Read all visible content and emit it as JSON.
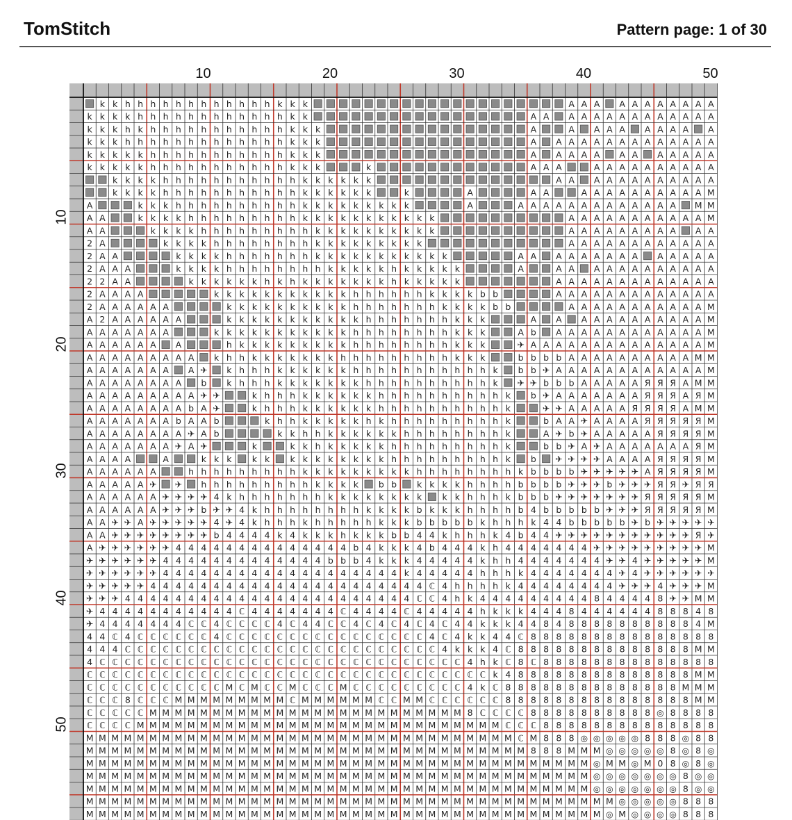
{
  "header": {
    "brand": "TomStitch",
    "page_label": "Pattern page: 1 of 30"
  },
  "pattern": {
    "columns_shown": 50,
    "rows_shown": 57,
    "column_numbers": [
      "10",
      "20",
      "30",
      "40",
      "50"
    ],
    "row_numbers": [
      "10",
      "20",
      "30",
      "40",
      "50"
    ],
    "major_gridline_every": 5,
    "colors": {
      "grid": "#333333",
      "major_grid": "#c0392b",
      "ruler_fill": "#bdbdbd",
      "symbol_text": "#222222",
      "dark_block": "#8a8a8a"
    },
    "symbol_legend": {
      "h": "h",
      "k": "k",
      "A": "A",
      "2": "2",
      "b": "b",
      "4": "4",
      "8": "8",
      "M": "M",
      "C": "ℂ",
      "R": "Я",
      "+": "✈",
      "O": "◎",
      "#": "block"
    },
    "rows": [
      "#kkhhhhhhhhhhhhkkk####################AAA#AAAAAAAAAA",
      "kkkkhhhhhhhhhhhhkk#################AA#AAAAAAAAAAAAA",
      "kkkhkhhhhhhhhhhhkkk################A##A#AAA#AAAA#A",
      "kkkhhhhhhhhhhhhhkkk################A#AAAAAAAAAAAAA",
      "kkkkkhhhhhhhhhhhkkk################A#AAAA#AA#AAAAA",
      "kkkkkhhhhhhhhhhhkkk###k############AAA##AAAAAAAAAA",
      "##kkkkhhhhhhhhhhhkkkkkk##############AA#AAAAAAAAAA",
      "##kkkkhhhhhhhhhhhkkkkkk##k####A####AA##AAAAAAAAAA",
      "A###kkkhhhhhhhhhhkkkkkkkkk####A###AAAAAAAAAAAAA#",
      "AA##kkkkhhhhhhhhhkkkkkkkkkkk##########AAAAAAAAAAA",
      "AA###kkkkhhhhhhhhhkkkkkkkkkk##########AAAAAAAAA#AA",
      "2A####kkkkhhhhhhhhkkkkkkkkk###########AAAAAAAAAAAA",
      "2AA####kkkkhhhhhhhkkkkkkkkkkk#####AA#AAAAAAA#AAAAA",
      "2AAA###kkkkhhhhhhhhkkkkkhkkkkk####A##AA#AAAAAAAAAA",
      "22AA####kkkkkkhkhkkkkkkkhkkkkk#######AAAAAAAAAAAAA",
      "2AAAA#####kkkkkkkkkkkhhhhhhkkkkbb####AAAAAAAAAAAAA",
      "2AAAAAA####kkkkkkkkkkhhhhhhhkkkkbb####AAAAAAAAAAA",
      "A2AAAAAA###kkkkkkkkkkkhhhhhhhkkk###A#A#AAAAAAAAAA",
      "AAAAAAA###kkkkkkkkkkkhhhhhhhhkkk##Ab#AAAAAAAAAAAA",
      "AAAAAA#A###hkkkkkkkkkhhhhhhhhkkk##+AAAAAAAAAAAAAA",
      "AAAAAAAAA#khhkkkkkkkhhhhhhhhhkkk##bbbbAAAAAAAAAA",
      "AAAAAAA#A+#khhhkkkkkkhhhhhhhhhhhk#bb+AAAAAAAAAAAA",
      "AAAAAAAA#b#khhhkkkkkkkhhhhhhhhhhk#++bbbAAAAARRRA",
      "AAAAAAAAA++##khhhkkkkkkhhhhhhhhhhk#b+AAAAAAARRRAR",
      "AAAAAAAAbA+##khhhkkkkkkhhhhhhhhhhk##++AAAAARRRRA",
      "AAAAAAAbAAb###khhkkkkkhkhhhhhhhhhk##bAA+AAAARRRRR",
      "AAAAAAAA+Ab####kkhhkkkkkkhhhhhhhhk##A+b+AAAAARRRR",
      "AAAAAAA+A+###k##kkhkkkkkhhhhhhhhhk##bb+A+AAAAAAAR",
      "AAAA##A##kkk#kk#kkkkkkkkhhhhhhhhhk#b#++++AAAARRRR",
      "AAAAAA##hhhhhhhhhkkkkkkkkkhhhhhhhhkbbbb+++++ARRRR",
      "AAAAA+#+#hhhhhhhhhkkkk#bb#kkkkhhhhbbbb+++b+++RR+RR",
      "AAAAAA++++4khhhhhhhkkkkkkkk#kkhhhkbbb+++++++RRRRR",
      "AAAAAA+++b++4khhhhhhhhkkkkbkkkhhhhb4bbbbb+++RRRRR",
      "AA++A+++++4+4khhhkhhhhhkkkbbbbbkhhhk44bbbbb+b+++++RR",
      "AA++++++++b4444k4kkkhkkkbb44khhhk4b44+++++++++++R+",
      "A++++++44444444444444b4kkk4b444kh4444444+++++++++",
      "++++++4444444444444bbb4kkk44444khh4444444++4+++++",
      "++++++4444444444444444444k44444hhhk4444444+4++++++",
      "+++++4444444444444444444444C4hhhhk44444444+++4+++",
      "+++44444444444444444444444CC4hk444444444844448++",
      "+44444444444C4444444C4444C44444hkkk4448444444888488",
      "+4444444CC4CCCC4C44CC4C4C4C4C44kkk448488888888884",
      "44C4CCCCCC4CCCCCCCCCCCCCCCC4C4kk44C888888888888888",
      "444CCCCCCCCCCCCCCCCCCCCCCCCC4kkk4C88888888888888",
      "4CCCCCCCCCCCCCCCCCCCCCCCCCCCCC4hkC8C88888888888888",
      "CCCCCCCCCCCCCCCCCCCCCCCCCCCCCCCCk488888888888888",
      "CCCCCCCCCCCMCMCCMCCCMCCCCCCCCC4kC88888888888888",
      "CCC8CCCMMMMMMMMMCMMMMMMCCMMCCCCCC888888888888888",
      "CCCCCMMMMMMMMMMMMMMMMMMMMMMMMM8CCCC8888888888O8888",
      "CCCCMMMMMMMMMMMMMMMMMMMMMMMMMMMMMCCC888888888888888",
      "MMMMMMMMMMMMMMMMMMMMMMMMMMMMMMMMMMCM888OOOOO888O88",
      "MMMMMMMMMMMMMMMMMMMMMMMMMMMMMMMMMMM888MMMOOOOO8O8O",
      "MMMMMMMMMMMMMMMMMMMMMMMMMMMMMMMMMMMMMMMMOMMOM08O8O",
      "MMMMMMMMMMMMMMMMMMMMMMMMMMMMMMMMMMMMMMMMOOOOOOO8OO",
      "MMMMMMMMMMMMMMMMMMMMMMMMMMMMMMMMMMMMMMMMOOOOOOO8OO",
      "MMMMMMMMMMMMMMMMMMMMMMMMMMMMMMMMMMMMMMMMMMOOOOO888",
      "MMMMMMMMMMMMMMMMMMMMMMMMMMMMMMMMMMMMMMMMMOMOOOO888"
    ]
  }
}
